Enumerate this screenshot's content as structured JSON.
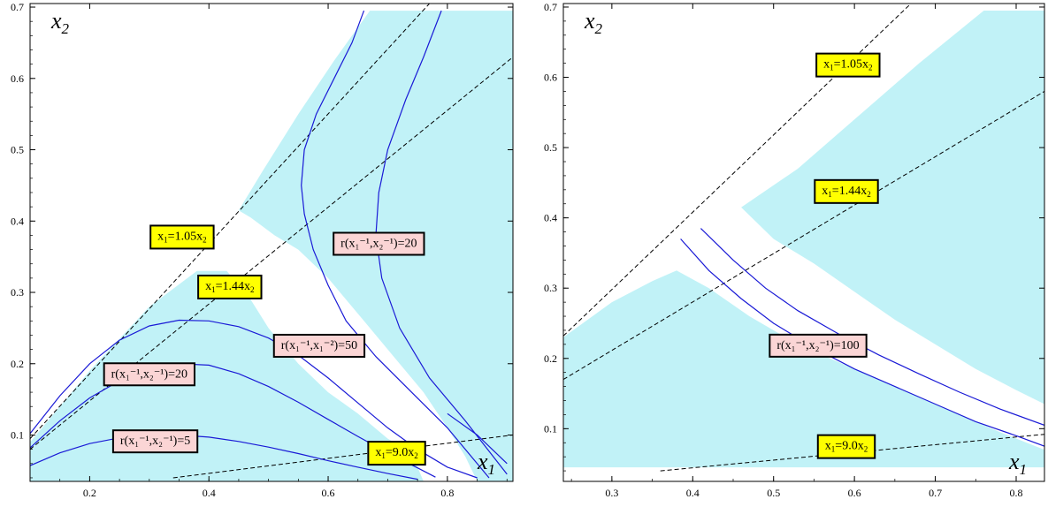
{
  "chart_data": [
    {
      "type": "line",
      "xlim": [
        0.1,
        0.91
      ],
      "ylim": [
        0.035,
        0.705
      ],
      "xticks": [
        "0.2",
        "0.4",
        "0.6",
        "0.8"
      ],
      "yticks": [
        "0.1",
        "0.2",
        "0.3",
        "0.4",
        "0.5",
        "0.6",
        "0.7"
      ],
      "xlabel": {
        "var": "x",
        "sub": "1"
      },
      "ylabel": {
        "var": "x",
        "sub": "2"
      },
      "shaded_color": "#c1f2f7",
      "shaded_regions": [
        [
          [
            0.1,
            0.035
          ],
          [
            0.1,
            0.09
          ],
          [
            0.2,
            0.19
          ],
          [
            0.3,
            0.28
          ],
          [
            0.38,
            0.33
          ],
          [
            0.43,
            0.33
          ],
          [
            0.47,
            0.29
          ],
          [
            0.5,
            0.25
          ],
          [
            0.55,
            0.2
          ],
          [
            0.6,
            0.16
          ],
          [
            0.65,
            0.13
          ],
          [
            0.7,
            0.095
          ],
          [
            0.74,
            0.075
          ],
          [
            0.76,
            0.035
          ]
        ],
        [
          [
            0.45,
            0.415
          ],
          [
            0.49,
            0.47
          ],
          [
            0.55,
            0.55
          ],
          [
            0.61,
            0.625
          ],
          [
            0.67,
            0.695
          ],
          [
            0.91,
            0.695
          ],
          [
            0.91,
            0.035
          ],
          [
            0.85,
            0.035
          ],
          [
            0.83,
            0.07
          ],
          [
            0.8,
            0.11
          ],
          [
            0.76,
            0.16
          ],
          [
            0.71,
            0.21
          ],
          [
            0.66,
            0.26
          ],
          [
            0.6,
            0.32
          ],
          [
            0.55,
            0.36
          ],
          [
            0.51,
            0.38
          ],
          [
            0.47,
            0.405
          ]
        ]
      ],
      "dashed_lines": [
        {
          "points": [
            [
              0.1,
              0.095
            ],
            [
              0.77,
              0.705
            ]
          ],
          "label": {
            "main": "x",
            "sub": "1",
            "rest": "=1.05x",
            "sub2": "2"
          }
        },
        {
          "points": [
            [
              0.1,
              0.08
            ],
            [
              0.91,
              0.63
            ]
          ],
          "label": {
            "main": "x",
            "sub": "1",
            "rest": "=1.44x",
            "sub2": "2"
          }
        },
        {
          "points": [
            [
              0.34,
              0.04
            ],
            [
              0.91,
              0.1
            ]
          ],
          "label": {
            "main": "x",
            "sub": "1",
            "rest": "=9.0x",
            "sub2": "2"
          }
        }
      ],
      "curves": [
        [
          [
            0.1,
            0.057
          ],
          [
            0.15,
            0.075
          ],
          [
            0.2,
            0.088
          ],
          [
            0.25,
            0.096
          ],
          [
            0.3,
            0.1
          ],
          [
            0.35,
            0.1
          ],
          [
            0.4,
            0.097
          ],
          [
            0.45,
            0.091
          ],
          [
            0.5,
            0.083
          ],
          [
            0.55,
            0.074
          ],
          [
            0.6,
            0.064
          ],
          [
            0.65,
            0.055
          ],
          [
            0.7,
            0.046
          ],
          [
            0.75,
            0.038
          ]
        ],
        [
          [
            0.1,
            0.082
          ],
          [
            0.15,
            0.12
          ],
          [
            0.2,
            0.152
          ],
          [
            0.25,
            0.176
          ],
          [
            0.3,
            0.192
          ],
          [
            0.35,
            0.2
          ],
          [
            0.4,
            0.198
          ],
          [
            0.45,
            0.186
          ],
          [
            0.5,
            0.168
          ],
          [
            0.55,
            0.146
          ],
          [
            0.6,
            0.122
          ],
          [
            0.65,
            0.098
          ],
          [
            0.7,
            0.075
          ],
          [
            0.75,
            0.054
          ],
          [
            0.78,
            0.041
          ]
        ],
        [
          [
            0.1,
            0.102
          ],
          [
            0.15,
            0.155
          ],
          [
            0.2,
            0.2
          ],
          [
            0.25,
            0.233
          ],
          [
            0.3,
            0.253
          ],
          [
            0.35,
            0.261
          ],
          [
            0.4,
            0.26
          ],
          [
            0.45,
            0.252
          ],
          [
            0.5,
            0.236
          ],
          [
            0.55,
            0.212
          ],
          [
            0.6,
            0.18
          ],
          [
            0.65,
            0.145
          ],
          [
            0.7,
            0.11
          ],
          [
            0.75,
            0.08
          ],
          [
            0.8,
            0.055
          ],
          [
            0.85,
            0.04
          ]
        ],
        [
          [
            0.87,
            0.04
          ],
          [
            0.8,
            0.11
          ],
          [
            0.74,
            0.16
          ],
          [
            0.68,
            0.21
          ],
          [
            0.63,
            0.26
          ],
          [
            0.6,
            0.31
          ],
          [
            0.575,
            0.36
          ],
          [
            0.56,
            0.41
          ],
          [
            0.555,
            0.45
          ],
          [
            0.56,
            0.5
          ],
          [
            0.58,
            0.55
          ],
          [
            0.61,
            0.6
          ],
          [
            0.64,
            0.65
          ],
          [
            0.66,
            0.695
          ]
        ],
        [
          [
            0.9,
            0.045
          ],
          [
            0.83,
            0.12
          ],
          [
            0.77,
            0.18
          ],
          [
            0.72,
            0.25
          ],
          [
            0.69,
            0.32
          ],
          [
            0.68,
            0.38
          ],
          [
            0.685,
            0.44
          ],
          [
            0.7,
            0.5
          ],
          [
            0.73,
            0.57
          ],
          [
            0.76,
            0.63
          ],
          [
            0.79,
            0.695
          ]
        ],
        [
          [
            0.9,
            0.06
          ],
          [
            0.85,
            0.1
          ],
          [
            0.8,
            0.13
          ]
        ]
      ],
      "boxes": [
        {
          "kind": "yellow",
          "x": 0.355,
          "y": 0.38,
          "text": {
            "main": "x",
            "sub": "1",
            "rest": "=1.05x",
            "sub2": "2"
          }
        },
        {
          "kind": "yellow",
          "x": 0.435,
          "y": 0.31,
          "text": {
            "main": "x",
            "sub": "1",
            "rest": "=1.44x",
            "sub2": "2"
          }
        },
        {
          "kind": "yellow",
          "x": 0.715,
          "y": 0.077,
          "text": {
            "main": "x",
            "sub": "1",
            "rest": "=9.0x",
            "sub2": "2"
          }
        },
        {
          "kind": "pink",
          "x": 0.685,
          "y": 0.37,
          "text": "r(x₁⁻¹,x₂⁻¹)=20"
        },
        {
          "kind": "pink",
          "x": 0.3,
          "y": 0.187,
          "text": "r(x₁⁻¹,x₂⁻¹)=20"
        },
        {
          "kind": "pink",
          "x": 0.585,
          "y": 0.227,
          "text": "r(x₁⁻¹,x₁⁻²)=50"
        },
        {
          "kind": "pink",
          "x": 0.31,
          "y": 0.093,
          "text": "r(x₁⁻¹,x₂⁻¹)=5"
        }
      ]
    },
    {
      "type": "line",
      "xlim": [
        0.24,
        0.835
      ],
      "ylim": [
        0.025,
        0.705
      ],
      "xticks": [
        "0.3",
        "0.4",
        "0.5",
        "0.6",
        "0.7",
        "0.8"
      ],
      "yticks": [
        "0.1",
        "0.2",
        "0.3",
        "0.4",
        "0.5",
        "0.6",
        "0.7"
      ],
      "xlabel": {
        "var": "x",
        "sub": "1"
      },
      "ylabel": {
        "var": "x",
        "sub": "2"
      },
      "shaded_color": "#c1f2f7",
      "shaded_regions": [
        [
          [
            0.24,
            0.045
          ],
          [
            0.24,
            0.23
          ],
          [
            0.3,
            0.28
          ],
          [
            0.35,
            0.31
          ],
          [
            0.38,
            0.325
          ],
          [
            0.42,
            0.3
          ],
          [
            0.47,
            0.26
          ],
          [
            0.53,
            0.22
          ],
          [
            0.6,
            0.185
          ],
          [
            0.66,
            0.155
          ],
          [
            0.72,
            0.125
          ],
          [
            0.78,
            0.095
          ],
          [
            0.835,
            0.07
          ],
          [
            0.835,
            0.045
          ]
        ],
        [
          [
            0.46,
            0.415
          ],
          [
            0.53,
            0.47
          ],
          [
            0.6,
            0.54
          ],
          [
            0.68,
            0.62
          ],
          [
            0.76,
            0.695
          ],
          [
            0.835,
            0.695
          ],
          [
            0.835,
            0.135
          ],
          [
            0.8,
            0.155
          ],
          [
            0.75,
            0.185
          ],
          [
            0.7,
            0.22
          ],
          [
            0.65,
            0.255
          ],
          [
            0.6,
            0.295
          ],
          [
            0.55,
            0.335
          ],
          [
            0.5,
            0.37
          ]
        ]
      ],
      "dashed_lines": [
        {
          "points": [
            [
              0.24,
              0.232
            ],
            [
              0.67,
              0.705
            ]
          ],
          "label": {
            "main": "x",
            "sub": "1",
            "rest": "=1.05x",
            "sub2": "2"
          }
        },
        {
          "points": [
            [
              0.24,
              0.17
            ],
            [
              0.835,
              0.58
            ]
          ],
          "label": {
            "main": "x",
            "sub": "1",
            "rest": "=1.44x",
            "sub2": "2"
          }
        },
        {
          "points": [
            [
              0.36,
              0.04
            ],
            [
              0.835,
              0.092
            ]
          ],
          "label": {
            "main": "x",
            "sub": "1",
            "rest": "=9.0x",
            "sub2": "2"
          }
        }
      ],
      "curves": [
        [
          [
            0.385,
            0.37
          ],
          [
            0.42,
            0.325
          ],
          [
            0.46,
            0.285
          ],
          [
            0.5,
            0.25
          ],
          [
            0.55,
            0.215
          ],
          [
            0.6,
            0.185
          ],
          [
            0.65,
            0.16
          ],
          [
            0.7,
            0.135
          ],
          [
            0.75,
            0.11
          ],
          [
            0.8,
            0.09
          ],
          [
            0.835,
            0.075
          ]
        ],
        [
          [
            0.41,
            0.385
          ],
          [
            0.45,
            0.34
          ],
          [
            0.49,
            0.3
          ],
          [
            0.53,
            0.268
          ],
          [
            0.58,
            0.235
          ],
          [
            0.63,
            0.205
          ],
          [
            0.68,
            0.178
          ],
          [
            0.73,
            0.152
          ],
          [
            0.78,
            0.128
          ],
          [
            0.835,
            0.105
          ]
        ]
      ],
      "boxes": [
        {
          "kind": "yellow",
          "x": 0.592,
          "y": 0.62,
          "text": {
            "main": "x",
            "sub": "1",
            "rest": "=1.05x",
            "sub2": "2"
          }
        },
        {
          "kind": "yellow",
          "x": 0.59,
          "y": 0.44,
          "text": {
            "main": "x",
            "sub": "1",
            "rest": "=1.44x",
            "sub2": "2"
          }
        },
        {
          "kind": "yellow",
          "x": 0.59,
          "y": 0.077,
          "text": {
            "main": "x",
            "sub": "1",
            "rest": "=9.0x",
            "sub2": "2"
          }
        },
        {
          "kind": "pink",
          "x": 0.555,
          "y": 0.22,
          "text": "r(x₁⁻¹,x₂⁻¹)=100"
        }
      ]
    }
  ]
}
